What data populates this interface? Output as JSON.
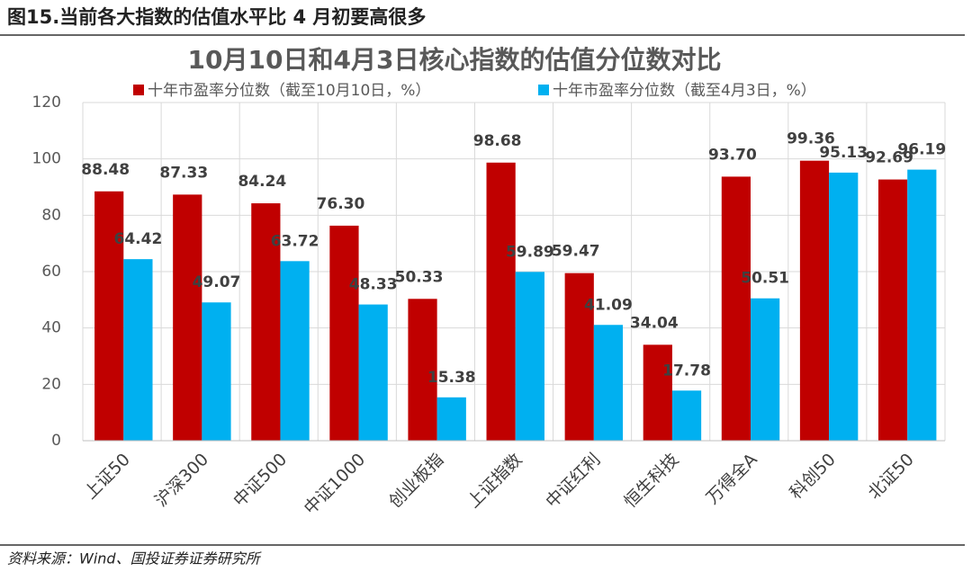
{
  "header": {
    "caption": "图15.当前各大指数的估值水平比 4 月初要高很多"
  },
  "chart_data": {
    "type": "bar",
    "title": "10月10日和4月3日核心指数的估值分位数对比",
    "categories": [
      "上证50",
      "沪深300",
      "中证500",
      "中证1000",
      "创业板指",
      "上证指数",
      "中证红利",
      "恒生科技",
      "万得全A",
      "科创50",
      "北证50"
    ],
    "series": [
      {
        "name": "十年市盈率分位数（截至10月10日，%）",
        "color": "#c00000",
        "values": [
          88.48,
          87.33,
          84.24,
          76.3,
          50.33,
          98.68,
          59.47,
          34.04,
          93.7,
          99.36,
          92.69
        ],
        "value_labels": [
          "88.48",
          "87.33",
          "84.24",
          "76.30",
          "50.33",
          "98.68",
          "59.47",
          "34.04",
          "93.70",
          "99.36",
          "92.69"
        ]
      },
      {
        "name": "十年市盈率分位数（截至4月3日，%）",
        "color": "#00b0f0",
        "values": [
          64.42,
          49.07,
          63.72,
          48.33,
          15.38,
          59.89,
          41.09,
          17.78,
          50.51,
          95.13,
          96.19
        ],
        "value_labels": [
          "64.42",
          "49.07",
          "63.72",
          "48.33",
          "15.38",
          "59.89",
          "41.09",
          "17.78",
          "50.51",
          "95.13",
          "96.19"
        ]
      }
    ],
    "ylim": [
      0,
      120
    ],
    "yticks": [
      0,
      20,
      40,
      60,
      80,
      100,
      120
    ],
    "grid": true
  },
  "footer": {
    "source": "资料来源：Wind、国投证券证券研究所"
  }
}
